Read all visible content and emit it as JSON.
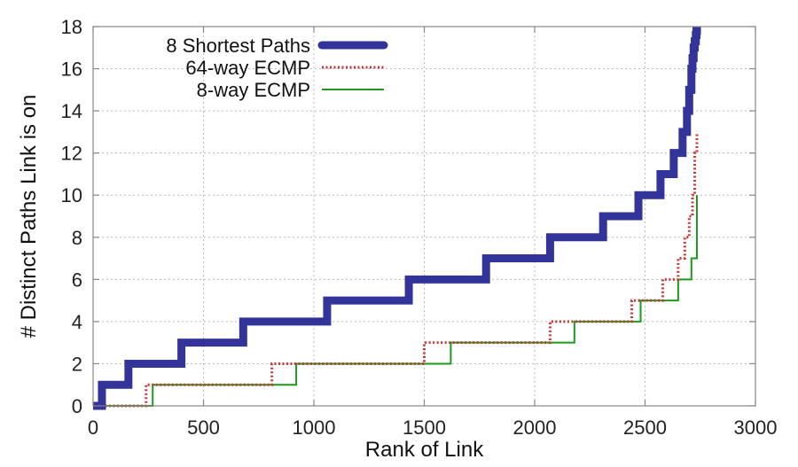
{
  "chart_data": {
    "type": "line",
    "xlabel": "Rank of Link",
    "ylabel": "# Distinct Paths Link is on",
    "xlim": [
      0,
      3000
    ],
    "ylim": [
      0,
      18
    ],
    "xticks": [
      0,
      500,
      1000,
      1500,
      2000,
      2500,
      3000
    ],
    "yticks": [
      0,
      2,
      4,
      6,
      8,
      10,
      12,
      14,
      16,
      18
    ],
    "grid": true,
    "legend_position": "top-left",
    "series": [
      {
        "name": "8 Shortest Paths",
        "style": "thick-solid",
        "color": "#32349a",
        "x": [
          0,
          40,
          160,
          400,
          680,
          1060,
          1430,
          1780,
          2070,
          2310,
          2470,
          2570,
          2630,
          2670,
          2690,
          2700,
          2710,
          2715,
          2720,
          2725,
          2730,
          2733,
          2735
        ],
        "y": [
          0,
          1,
          2,
          3,
          4,
          5,
          6,
          7,
          8,
          9,
          10,
          11,
          12,
          13,
          14,
          15,
          16,
          16.5,
          17,
          17.3,
          17.6,
          17.8,
          18
        ]
      },
      {
        "name": "64-way ECMP",
        "style": "dotted",
        "color": "#c8383a",
        "x": [
          0,
          240,
          810,
          1500,
          2070,
          2440,
          2580,
          2650,
          2680,
          2700,
          2715,
          2725,
          2735
        ],
        "y": [
          0,
          1,
          2,
          3,
          4,
          5,
          6,
          7,
          8,
          9,
          10,
          12,
          13
        ]
      },
      {
        "name": "8-way ECMP",
        "style": "thin-solid",
        "color": "#1c9a1c",
        "x": [
          0,
          270,
          920,
          1620,
          2180,
          2480,
          2650,
          2710,
          2735
        ],
        "y": [
          0,
          1,
          2,
          3,
          4,
          5,
          6,
          7,
          10
        ]
      }
    ]
  }
}
